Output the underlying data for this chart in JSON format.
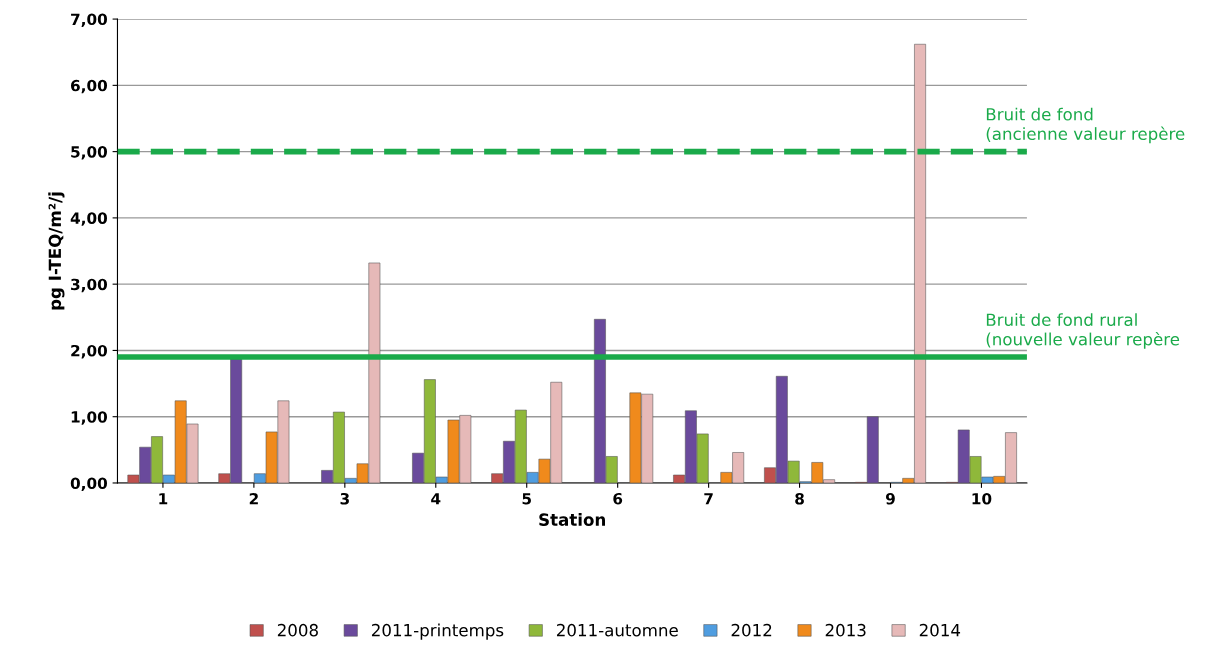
{
  "chart_data": {
    "type": "bar",
    "xlabel": "Station",
    "ylabel": "pg I-TEQ/m²/j",
    "categories": [
      "1",
      "2",
      "3",
      "4",
      "5",
      "6",
      "7",
      "8",
      "9",
      "10"
    ],
    "series": [
      {
        "name": "2008",
        "color": "#c0504d",
        "values": [
          0.12,
          0.14,
          null,
          null,
          0.14,
          null,
          0.12,
          0.23,
          0.01,
          0.01
        ]
      },
      {
        "name": "2011-printemps",
        "color": "#6a4a9c",
        "values": [
          0.54,
          1.87,
          0.19,
          0.45,
          0.63,
          2.47,
          1.09,
          1.61,
          1.0,
          0.8
        ]
      },
      {
        "name": "2011-automne",
        "color": "#8fb83a",
        "values": [
          0.7,
          null,
          1.07,
          1.56,
          1.1,
          0.4,
          0.74,
          0.33,
          null,
          0.4
        ]
      },
      {
        "name": "2012",
        "color": "#4f9de0",
        "values": [
          0.12,
          0.14,
          0.07,
          0.09,
          0.16,
          null,
          null,
          0.02,
          0.01,
          0.09
        ]
      },
      {
        "name": "2013",
        "color": "#f08a1c",
        "values": [
          1.24,
          0.77,
          0.29,
          0.95,
          0.36,
          1.36,
          0.16,
          0.31,
          0.07,
          0.1
        ]
      },
      {
        "name": "2014",
        "color": "#e6b9b8",
        "values": [
          0.89,
          1.24,
          3.32,
          1.02,
          1.52,
          1.34,
          0.46,
          0.05,
          6.62,
          0.76
        ]
      }
    ],
    "ylim": [
      0,
      7
    ],
    "yticks": [
      {
        "value": 0,
        "label": "0,00"
      },
      {
        "value": 1,
        "label": "1,00"
      },
      {
        "value": 2,
        "label": "2,00"
      },
      {
        "value": 3,
        "label": "3,00"
      },
      {
        "value": 4,
        "label": "4,00"
      },
      {
        "value": 5,
        "label": "5,00"
      },
      {
        "value": 6,
        "label": "6,00"
      },
      {
        "value": 7,
        "label": "7,00"
      }
    ],
    "ref_lines": [
      {
        "axis": "y",
        "value": 5,
        "label": "Bruit de fond\n(ancienne valeur repère",
        "color": "#1aaa4a",
        "line_style": "dashed"
      },
      {
        "axis": "y",
        "value": 1.9,
        "label": "Bruit de fond rural\n(nouvelle valeur repère",
        "color": "#1aaa4a",
        "line_style": "solid"
      }
    ],
    "grid": "y",
    "legend": "bottom"
  }
}
